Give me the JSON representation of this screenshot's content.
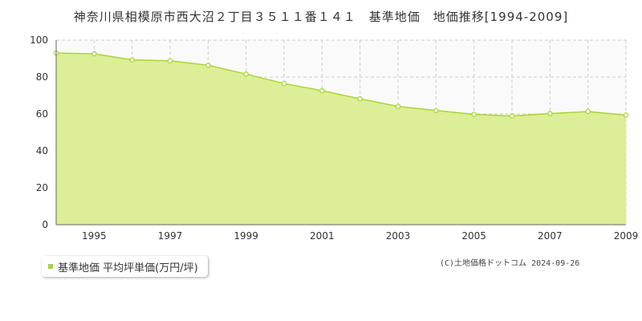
{
  "chart_data": {
    "type": "area",
    "title": "神奈川県相模原市西大沼２丁目３５１１番１４１　基準地価　地価推移[1994-2009]",
    "x": [
      1994,
      1995,
      1996,
      1997,
      1998,
      1999,
      2000,
      2001,
      2002,
      2003,
      2004,
      2005,
      2006,
      2007,
      2008,
      2009
    ],
    "x_tick_labels": [
      "1995",
      "1997",
      "1999",
      "2001",
      "2003",
      "2005",
      "2007",
      "2009"
    ],
    "y_tick_labels": [
      "0",
      "20",
      "40",
      "60",
      "80",
      "100"
    ],
    "ylim": [
      0,
      100
    ],
    "series": [
      {
        "name": "基準地価 平均坪単価(万円/坪)",
        "values": [
          93.0,
          92.6,
          89.3,
          88.8,
          86.4,
          81.6,
          76.5,
          72.6,
          68.2,
          64.1,
          61.9,
          59.8,
          58.9,
          60.2,
          61.3,
          59.4
        ]
      }
    ],
    "legend_position": "bottom-left",
    "grid": true,
    "colors": {
      "line": "#a8d43a",
      "fill": "#dcee96",
      "marker_fill": "#ffffff",
      "grid": "#cccccc",
      "plot_bg": "#fafafa"
    }
  },
  "legend": {
    "label": "基準地価 平均坪単価(万円/坪)"
  },
  "copyright": "(C)土地価格ドットコム 2024-09-26"
}
